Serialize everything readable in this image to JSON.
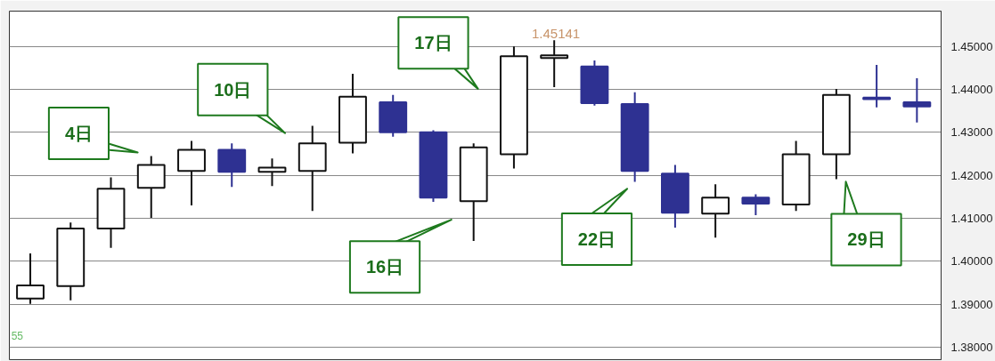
{
  "chart_data": {
    "type": "candlestick",
    "categories": [
      null,
      null,
      null,
      null,
      null,
      null,
      null,
      null,
      null,
      null,
      null,
      null,
      null,
      null,
      null,
      null,
      null,
      null,
      null,
      null,
      null,
      null,
      null
    ],
    "ohlc": [
      [
        1.3913,
        1.4018,
        1.3901,
        1.3944
      ],
      [
        1.3942,
        1.409,
        1.3909,
        1.4076
      ],
      [
        1.4076,
        1.4195,
        1.4031,
        1.4169
      ],
      [
        1.4171,
        1.4245,
        1.4101,
        1.4224
      ],
      [
        1.421,
        1.428,
        1.413,
        1.4259
      ],
      [
        1.4259,
        1.4274,
        1.4173,
        1.4208
      ],
      [
        1.4208,
        1.4239,
        1.4175,
        1.4218
      ],
      [
        1.421,
        1.4315,
        1.4117,
        1.4274
      ],
      [
        1.4276,
        1.4436,
        1.4251,
        1.4383
      ],
      [
        1.437,
        1.4387,
        1.429,
        1.43
      ],
      [
        1.43,
        1.4305,
        1.4138,
        1.4148
      ],
      [
        1.414,
        1.4274,
        1.4047,
        1.4265
      ],
      [
        1.4249,
        1.45,
        1.4216,
        1.4477
      ],
      [
        1.4473,
        1.45141,
        1.4405,
        1.4479
      ],
      [
        1.4453,
        1.4467,
        1.4362,
        1.4368
      ],
      [
        1.4366,
        1.4393,
        1.4185,
        1.421
      ],
      [
        1.4204,
        1.4224,
        1.4078,
        1.4113
      ],
      [
        1.4111,
        1.4179,
        1.4055,
        1.4148
      ],
      [
        1.4148,
        1.4156,
        1.4107,
        1.4134
      ],
      [
        1.4132,
        1.428,
        1.4117,
        1.4249
      ],
      [
        1.4249,
        1.4401,
        1.4191,
        1.4387
      ],
      [
        1.4381,
        1.4457,
        1.4358,
        1.4377
      ],
      [
        1.437,
        1.4426,
        1.4323,
        1.436
      ]
    ],
    "colors": [
      "#ffffff",
      "#ffffff",
      "#ffffff",
      "#ffffff",
      "#ffffff",
      "#2e3192",
      "#ffffff",
      "#ffffff",
      "#ffffff",
      "#2e3192",
      "#2e3192",
      "#ffffff",
      "#ffffff",
      "#ffffff",
      "#2e3192",
      "#2e3192",
      "#2e3192",
      "#ffffff",
      "#2e3192",
      "#ffffff",
      "#ffffff",
      "#2e3192",
      "#2e3192"
    ],
    "ylim": [
      1.3771,
      1.4582
    ],
    "yticks": [
      {
        "value": 1.38,
        "label": "1.38000"
      },
      {
        "value": 1.39,
        "label": "1.39000"
      },
      {
        "value": 1.4,
        "label": "1.40000"
      },
      {
        "value": 1.41,
        "label": "1.41000"
      },
      {
        "value": 1.42,
        "label": "1.42000"
      },
      {
        "value": 1.43,
        "label": "1.43000"
      },
      {
        "value": 1.44,
        "label": "1.44000"
      },
      {
        "value": 1.45,
        "label": "1.45000"
      }
    ],
    "grid": "y",
    "tick_labels": "y",
    "annotations": [
      "4日",
      "10日",
      "17日",
      "16日",
      "22日",
      "29日",
      "1.45141",
      "55"
    ]
  }
}
